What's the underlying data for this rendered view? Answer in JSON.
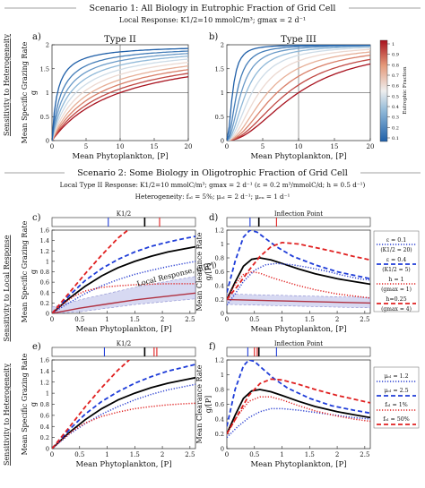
{
  "scenario1": {
    "title": "Scenario 1: All Biology in Eutrophic Fraction of Grid Cell",
    "subtitle": "Local Response: K1/2=10 mmolC/m³; gmax = 2 d⁻¹"
  },
  "scenario2": {
    "title": "Scenario 2: Some Biology in Oligotrophic Fraction of Grid Cell",
    "line1": "Local Type II Response: K1/2=10 mmolC/m³; gmax = 2 d⁻¹ (ε = 0.2 m³/mmolC/d; h = 0.5 d⁻¹)",
    "line2": "Heterogeneity: fₒₗ = 5%;  μₒₗ = 2 d⁻¹;  μₑᵤ = 1 d⁻¹"
  },
  "row_labels": {
    "row1": "Sensitivity to Heterogeneity",
    "row2": "Sensitivity to Local Response",
    "row3": "Sensitivity to Heterogeneity"
  },
  "colorbar": {
    "label": "Eutrophic Fraction",
    "ticks": [
      "1",
      "0.9",
      "0.8",
      "0.7",
      "0.6",
      "0.5",
      "0.4",
      "0.3",
      "0.2",
      "0.1"
    ]
  },
  "panel_letters": [
    "a)",
    "b)",
    "c)",
    "d)",
    "e)",
    "f)"
  ],
  "inset_labels": {
    "c": "K1/2",
    "d": "Inflection Point",
    "e": "K1/2",
    "f": "Inflection Point"
  },
  "local_response_label": "Local Response, g([P])",
  "legend_d": [
    "ε = 0.1 (K1/2 = 20)",
    "ε = 0.4 (K1/2 = 5)",
    "h = 1 (gmax = 1)",
    "h=0.25 (gmax = 4)"
  ],
  "legend_f": [
    "μₒₗ = 1.2",
    "μₒₗ = 2.5",
    "fₒₗ = 1%",
    "fₒₗ = 50%"
  ],
  "chart_data": [
    {
      "id": "a",
      "type": "line",
      "title": "Type II",
      "xlabel": "Mean Phytoplankton, [P]",
      "ylabel": "Mean Specific Grazing Rate, g",
      "xlim": [
        0,
        20
      ],
      "ylim": [
        0,
        2
      ],
      "xticks": [
        0,
        5,
        10,
        15,
        20
      ],
      "yticks": [
        0,
        0.5,
        1,
        1.5,
        2
      ],
      "series_fraction": [
        1,
        0.9,
        0.8,
        0.7,
        0.6,
        0.5,
        0.4,
        0.3,
        0.2,
        0.1
      ],
      "series_halfsat": [
        10,
        8.5,
        7,
        5.7,
        4.5,
        3.5,
        2.7,
        2.0,
        1.4,
        0.8
      ]
    },
    {
      "id": "b",
      "type": "line",
      "title": "Type III",
      "xlabel": "Mean Phytoplankton, [P]",
      "ylabel": "",
      "xlim": [
        0,
        20
      ],
      "ylim": [
        0,
        2
      ],
      "xticks": [
        0,
        5,
        10,
        15,
        20
      ],
      "yticks": [
        0,
        0.5,
        1,
        1.5,
        2
      ],
      "series_fraction": [
        1,
        0.9,
        0.8,
        0.7,
        0.6,
        0.5,
        0.4,
        0.3,
        0.2,
        0.1
      ],
      "series_halfsat": [
        10,
        8.5,
        7,
        5.7,
        4.5,
        3.5,
        2.7,
        2.0,
        1.4,
        0.8
      ]
    },
    {
      "id": "c",
      "type": "line",
      "xlabel": "Mean Phytoplankton, [P]",
      "ylabel": "Mean Specific Grazing Rate, g",
      "xlim": [
        0,
        2.6
      ],
      "ylim": [
        0,
        1.6
      ],
      "xticks": [
        0,
        0.5,
        1,
        1.5,
        2,
        2.5
      ],
      "yticks": [
        0,
        0.2,
        0.4,
        0.6,
        0.8,
        1,
        1.2,
        1.4,
        1.6
      ],
      "series": [
        {
          "style": "black-solid",
          "x": [
            0,
            0.3,
            0.6,
            0.9,
            1.2,
            1.5,
            1.8,
            2.1,
            2.4,
            2.6
          ],
          "y": [
            0,
            0.28,
            0.52,
            0.72,
            0.88,
            1.0,
            1.1,
            1.18,
            1.24,
            1.28
          ]
        },
        {
          "style": "blue-dashed",
          "x": [
            0,
            0.3,
            0.6,
            0.9,
            1.2,
            1.5,
            1.8,
            2.1,
            2.4,
            2.6
          ],
          "y": [
            0,
            0.33,
            0.63,
            0.86,
            1.04,
            1.18,
            1.29,
            1.37,
            1.44,
            1.48
          ]
        },
        {
          "style": "blue-dotted",
          "x": [
            0,
            0.3,
            0.6,
            0.9,
            1.2,
            1.5,
            1.8,
            2.1,
            2.4,
            2.6
          ],
          "y": [
            0,
            0.2,
            0.38,
            0.53,
            0.65,
            0.75,
            0.83,
            0.9,
            0.96,
            1.0
          ]
        },
        {
          "style": "red-dashed",
          "x": [
            0,
            0.3,
            0.6,
            0.9,
            1.2,
            1.4
          ],
          "y": [
            0,
            0.38,
            0.76,
            1.12,
            1.45,
            1.62
          ]
        },
        {
          "style": "red-dotted",
          "x": [
            0,
            0.2,
            0.4,
            0.6,
            0.9,
            1.2,
            1.5,
            1.8,
            2.1,
            2.4,
            2.6
          ],
          "y": [
            0,
            0.18,
            0.33,
            0.43,
            0.5,
            0.53,
            0.55,
            0.56,
            0.57,
            0.57,
            0.57
          ]
        },
        {
          "style": "local-response",
          "x": [
            0,
            0.5,
            1,
            1.5,
            2,
            2.6
          ],
          "y": [
            0,
            0.1,
            0.18,
            0.26,
            0.32,
            0.39
          ]
        }
      ],
      "inset_ticks": [
        {
          "x": 1.02,
          "color": "blue"
        },
        {
          "x": 1.68,
          "color": "black"
        },
        {
          "x": 1.95,
          "color": "red"
        }
      ]
    },
    {
      "id": "d",
      "type": "line",
      "xlabel": "Mean Phytoplankton, [P]",
      "ylabel": "Mean Clearance Rate, g/[P]",
      "xlim": [
        0,
        2.6
      ],
      "ylim": [
        0,
        1.2
      ],
      "xticks": [
        0,
        0.5,
        1,
        1.5,
        2,
        2.5
      ],
      "yticks": [
        0,
        0.2,
        0.4,
        0.6,
        0.8,
        1,
        1.2
      ],
      "series": [
        {
          "style": "black-solid",
          "x": [
            0,
            0.15,
            0.3,
            0.45,
            0.6,
            0.8,
            1.0,
            1.3,
            1.6,
            2.0,
            2.3,
            2.6
          ],
          "y": [
            0.2,
            0.45,
            0.68,
            0.78,
            0.8,
            0.77,
            0.72,
            0.64,
            0.57,
            0.5,
            0.46,
            0.42
          ]
        },
        {
          "style": "blue-dashed",
          "x": [
            0,
            0.15,
            0.3,
            0.42,
            0.55,
            0.7,
            0.9,
            1.2,
            1.6,
            2.0,
            2.3,
            2.6
          ],
          "y": [
            0.3,
            0.75,
            1.1,
            1.2,
            1.17,
            1.08,
            0.96,
            0.82,
            0.7,
            0.6,
            0.55,
            0.5
          ]
        },
        {
          "style": "blue-dotted",
          "x": [
            0,
            0.15,
            0.3,
            0.5,
            0.7,
            0.9,
            1.2,
            1.5,
            1.8,
            2.1,
            2.4,
            2.6
          ],
          "y": [
            0.12,
            0.28,
            0.46,
            0.62,
            0.7,
            0.72,
            0.7,
            0.66,
            0.61,
            0.55,
            0.5,
            0.48
          ]
        },
        {
          "style": "red-dashed",
          "x": [
            0,
            0.2,
            0.4,
            0.6,
            0.8,
            1.0,
            1.3,
            1.6,
            2.0,
            2.3,
            2.6
          ],
          "y": [
            0.2,
            0.4,
            0.62,
            0.82,
            0.96,
            1.02,
            1.0,
            0.95,
            0.88,
            0.82,
            0.77
          ]
        },
        {
          "style": "red-dotted",
          "x": [
            0,
            0.15,
            0.3,
            0.45,
            0.6,
            0.8,
            1.0,
            1.3,
            1.6,
            2.0,
            2.3,
            2.6
          ],
          "y": [
            0.2,
            0.42,
            0.56,
            0.6,
            0.58,
            0.52,
            0.47,
            0.4,
            0.34,
            0.28,
            0.25,
            0.22
          ]
        },
        {
          "style": "local-response",
          "x": [
            0,
            0.5,
            1,
            1.5,
            2,
            2.6
          ],
          "y": [
            0.2,
            0.19,
            0.18,
            0.17,
            0.16,
            0.15
          ]
        }
      ],
      "inset_ticks": [
        {
          "x": 0.42,
          "color": "blue"
        },
        {
          "x": 0.58,
          "color": "black"
        },
        {
          "x": 0.9,
          "color": "red"
        }
      ]
    },
    {
      "id": "e",
      "type": "line",
      "xlabel": "Mean Phytoplankton, [P]",
      "ylabel": "Mean Specific Grazing Rate, g",
      "xlim": [
        0,
        2.6
      ],
      "ylim": [
        0,
        1.6
      ],
      "xticks": [
        0,
        0.5,
        1,
        1.5,
        2,
        2.5
      ],
      "yticks": [
        0,
        0.2,
        0.4,
        0.6,
        0.8,
        1,
        1.2,
        1.4,
        1.6
      ],
      "series": [
        {
          "style": "black-solid",
          "x": [
            0,
            0.3,
            0.6,
            0.9,
            1.2,
            1.5,
            1.8,
            2.1,
            2.4,
            2.6
          ],
          "y": [
            0,
            0.28,
            0.52,
            0.72,
            0.88,
            1.0,
            1.1,
            1.18,
            1.24,
            1.28
          ]
        },
        {
          "style": "blue-dashed",
          "x": [
            0,
            0.3,
            0.6,
            0.9,
            1.2,
            1.5,
            1.8,
            2.1,
            2.4,
            2.6
          ],
          "y": [
            0,
            0.33,
            0.62,
            0.85,
            1.03,
            1.18,
            1.3,
            1.4,
            1.47,
            1.52
          ]
        },
        {
          "style": "blue-dotted",
          "x": [
            0,
            0.3,
            0.6,
            0.9,
            1.2,
            1.5,
            1.8,
            2.1,
            2.4,
            2.6
          ],
          "y": [
            0,
            0.25,
            0.45,
            0.62,
            0.76,
            0.88,
            0.98,
            1.06,
            1.12,
            1.16
          ]
        },
        {
          "style": "red-dashed",
          "x": [
            0,
            0.3,
            0.6,
            0.9,
            1.2,
            1.4
          ],
          "y": [
            0,
            0.37,
            0.75,
            1.1,
            1.42,
            1.6
          ]
        },
        {
          "style": "red-dotted",
          "x": [
            0,
            0.2,
            0.4,
            0.6,
            0.9,
            1.2,
            1.5,
            1.8,
            2.1,
            2.4,
            2.6
          ],
          "y": [
            0,
            0.18,
            0.34,
            0.46,
            0.58,
            0.66,
            0.72,
            0.76,
            0.79,
            0.81,
            0.82
          ]
        }
      ],
      "inset_ticks": [
        {
          "x": 0.95,
          "color": "blue"
        },
        {
          "x": 1.68,
          "color": "black"
        },
        {
          "x": 1.85,
          "color": "red"
        },
        {
          "x": 1.9,
          "color": "red"
        }
      ]
    },
    {
      "id": "f",
      "type": "line",
      "xlabel": "Mean Phytoplankton, [P]",
      "ylabel": "Mean Clearance Rate, g/[P]",
      "xlim": [
        0,
        2.6
      ],
      "ylim": [
        0,
        1.2
      ],
      "xticks": [
        0,
        0.5,
        1,
        1.5,
        2,
        2.5
      ],
      "yticks": [
        0,
        0.2,
        0.4,
        0.6,
        0.8,
        1,
        1.2
      ],
      "series": [
        {
          "style": "black-solid",
          "x": [
            0,
            0.15,
            0.3,
            0.45,
            0.6,
            0.8,
            1.0,
            1.3,
            1.6,
            2.0,
            2.3,
            2.6
          ],
          "y": [
            0.2,
            0.45,
            0.68,
            0.78,
            0.8,
            0.77,
            0.72,
            0.64,
            0.57,
            0.5,
            0.46,
            0.42
          ]
        },
        {
          "style": "blue-dashed",
          "x": [
            0,
            0.15,
            0.3,
            0.4,
            0.5,
            0.65,
            0.85,
            1.1,
            1.5,
            1.9,
            2.3,
            2.6
          ],
          "y": [
            0.3,
            0.8,
            1.12,
            1.2,
            1.18,
            1.08,
            0.95,
            0.82,
            0.68,
            0.58,
            0.52,
            0.48
          ]
        },
        {
          "style": "blue-dotted",
          "x": [
            0,
            0.2,
            0.4,
            0.6,
            0.8,
            1.0,
            1.3,
            1.6,
            2.0,
            2.3,
            2.6
          ],
          "y": [
            0.15,
            0.3,
            0.42,
            0.5,
            0.54,
            0.54,
            0.52,
            0.49,
            0.45,
            0.42,
            0.4
          ]
        },
        {
          "style": "red-dashed",
          "x": [
            0,
            0.2,
            0.4,
            0.6,
            0.8,
            1.0,
            1.3,
            1.6,
            2.0,
            2.3,
            2.6
          ],
          "y": [
            0.2,
            0.46,
            0.72,
            0.88,
            0.94,
            0.93,
            0.87,
            0.8,
            0.72,
            0.67,
            0.62
          ]
        },
        {
          "style": "red-dotted",
          "x": [
            0,
            0.2,
            0.4,
            0.6,
            0.8,
            1.0,
            1.3,
            1.6,
            2.0,
            2.3,
            2.6
          ],
          "y": [
            0.2,
            0.45,
            0.64,
            0.7,
            0.7,
            0.66,
            0.58,
            0.51,
            0.44,
            0.4,
            0.37
          ]
        }
      ],
      "inset_ticks": [
        {
          "x": 0.38,
          "color": "blue"
        },
        {
          "x": 0.5,
          "color": "red"
        },
        {
          "x": 0.55,
          "color": "red"
        },
        {
          "x": 0.58,
          "color": "black"
        },
        {
          "x": 0.9,
          "color": "blue"
        }
      ]
    }
  ]
}
